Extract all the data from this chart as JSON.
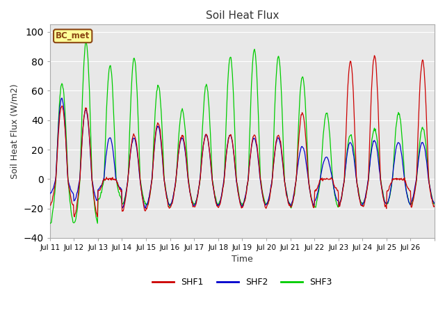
{
  "title": "Soil Heat Flux",
  "xlabel": "Time",
  "ylabel": "Soil Heat Flux (W/m2)",
  "ylim": [
    -40,
    105
  ],
  "yticks": [
    -40,
    -20,
    0,
    20,
    40,
    60,
    80,
    100
  ],
  "plot_bg_color": "#e8e8e8",
  "fig_bg_color": "#ffffff",
  "annotation_text": "BC_met",
  "annotation_bg": "#ffff99",
  "annotation_border": "#8B4513",
  "colors": {
    "SHF1": "#cc0000",
    "SHF2": "#0000cc",
    "SHF3": "#00cc00"
  },
  "legend_entries": [
    "SHF1",
    "SHF2",
    "SHF3"
  ],
  "start_day": 11,
  "end_day": 26,
  "n_days": 16,
  "points_per_day": 48,
  "shf1_peaks": [
    50,
    48,
    0,
    30,
    38,
    30,
    30,
    30,
    30,
    30,
    45,
    0,
    80,
    84,
    0,
    81
  ],
  "shf2_peaks": [
    55,
    47,
    28,
    28,
    36,
    28,
    30,
    30,
    28,
    28,
    22,
    15,
    25,
    26,
    25,
    25
  ],
  "shf3_peaks": [
    65,
    93,
    77,
    82,
    64,
    47,
    64,
    83,
    88,
    83,
    70,
    45,
    30,
    34,
    45,
    35
  ],
  "shf1_troughs": [
    -18,
    -25,
    -8,
    -22,
    -20,
    -19,
    -19,
    -19,
    -19,
    -19,
    -19,
    -8,
    -19,
    -19,
    -8,
    -19
  ],
  "shf2_troughs": [
    -10,
    -15,
    -7,
    -20,
    -18,
    -18,
    -18,
    -18,
    -18,
    -17,
    -18,
    -15,
    -18,
    -17,
    -17,
    -16
  ],
  "shf3_troughs": [
    -30,
    -30,
    -14,
    -17,
    -18,
    -17,
    -17,
    -17,
    -17,
    -17,
    -19,
    -19,
    -17,
    -17,
    -17,
    -17
  ]
}
